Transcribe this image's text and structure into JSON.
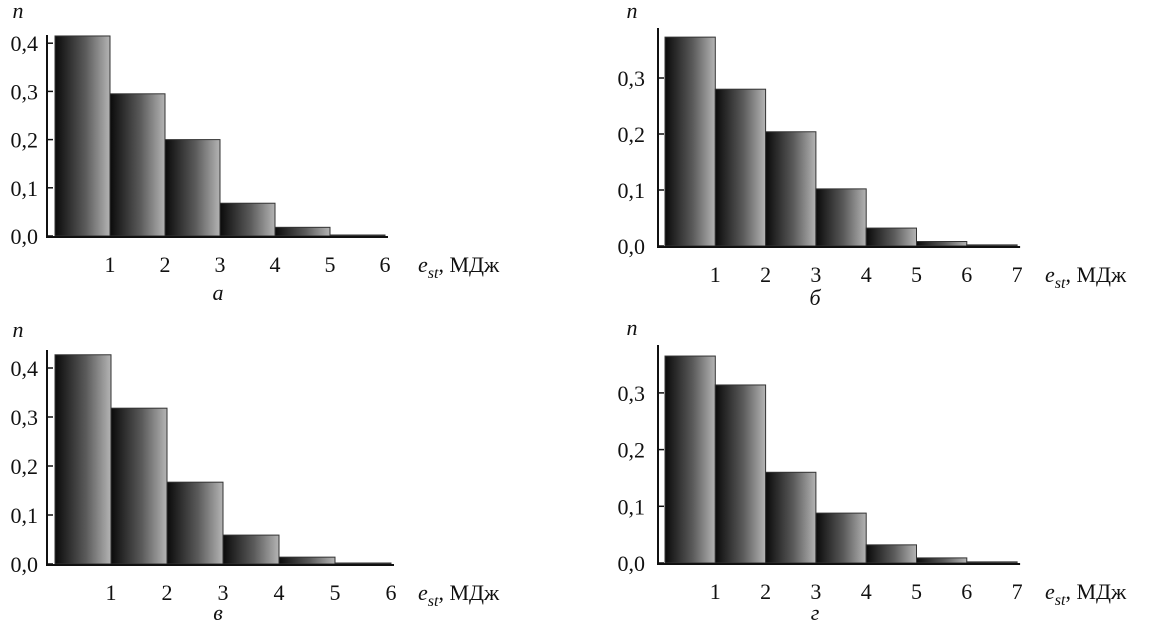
{
  "chart_data": [
    {
      "type": "bar",
      "panel_label": "а",
      "ylabel": "n",
      "xlabel_main": "e",
      "xlabel_sub": "st",
      "xlabel_unit": ", МДж",
      "x_ticks": [
        "1",
        "2",
        "3",
        "4",
        "5",
        "6"
      ],
      "y_ticks": [
        "0,0",
        "0,1",
        "0,2",
        "0,3",
        "0,4"
      ],
      "y_tick_values": [
        0,
        0.1,
        0.2,
        0.3,
        0.4
      ],
      "ylim": [
        0,
        0.42
      ],
      "bin_edges": [
        0,
        1,
        2,
        3,
        4,
        5,
        6
      ],
      "values": [
        0.415,
        0.295,
        0.2,
        0.068,
        0.018,
        0.002
      ]
    },
    {
      "type": "bar",
      "panel_label": "б",
      "ylabel": "n",
      "xlabel_main": "e",
      "xlabel_sub": "st",
      "xlabel_unit": ", МДж",
      "x_ticks": [
        "1",
        "2",
        "3",
        "4",
        "5",
        "6",
        "7"
      ],
      "y_ticks": [
        "0,0",
        "0,1",
        "0,2",
        "0,3"
      ],
      "y_tick_values": [
        0,
        0.1,
        0.2,
        0.3
      ],
      "ylim": [
        0,
        0.38
      ],
      "bin_edges": [
        0,
        1,
        2,
        3,
        4,
        5,
        6,
        7
      ],
      "values": [
        0.373,
        0.28,
        0.204,
        0.102,
        0.032,
        0.008,
        0.002
      ]
    },
    {
      "type": "bar",
      "panel_label": "в",
      "ylabel": "n",
      "xlabel_main": "e",
      "xlabel_sub": "st",
      "xlabel_unit": ", МДж",
      "x_ticks": [
        "1",
        "2",
        "3",
        "4",
        "5",
        "6"
      ],
      "y_ticks": [
        "0,0",
        "0,1",
        "0,2",
        "0,3",
        "0,4"
      ],
      "y_tick_values": [
        0,
        0.1,
        0.2,
        0.3,
        0.4
      ],
      "ylim": [
        0,
        0.43
      ],
      "bin_edges": [
        0,
        1,
        2,
        3,
        4,
        5,
        6
      ],
      "values": [
        0.427,
        0.318,
        0.167,
        0.059,
        0.014,
        0.002
      ]
    },
    {
      "type": "bar",
      "panel_label": "г",
      "ylabel": "n",
      "xlabel_main": "e",
      "xlabel_sub": "st",
      "xlabel_unit": ", МДж",
      "x_ticks": [
        "1",
        "2",
        "3",
        "4",
        "5",
        "6",
        "7"
      ],
      "y_ticks": [
        "0,0",
        "0,1",
        "0,2",
        "0,3"
      ],
      "y_tick_values": [
        0,
        0.1,
        0.2,
        0.3
      ],
      "ylim": [
        0,
        0.37
      ],
      "bin_edges": [
        0,
        1,
        2,
        3,
        4,
        5,
        6,
        7
      ],
      "values": [
        0.365,
        0.314,
        0.16,
        0.088,
        0.032,
        0.009,
        0.002
      ]
    }
  ]
}
